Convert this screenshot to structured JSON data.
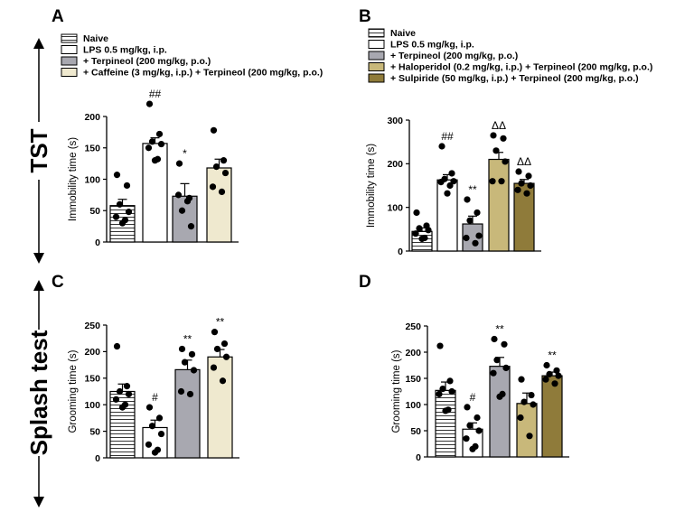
{
  "row_labels": [
    "TST",
    "Splash test"
  ],
  "chart_data": [
    {
      "panel": "A",
      "type": "bar",
      "ylabel": "Immobility time (s)",
      "ylim": [
        0,
        200
      ],
      "yticks": [
        0,
        50,
        100,
        150,
        200
      ],
      "legend": [
        {
          "label": "Naive",
          "pattern": "stripes",
          "color": "#ffffff"
        },
        {
          "label": "LPS 0.5 mg/kg, i.p.",
          "color": "#ffffff"
        },
        {
          "label": "+ Terpineol (200 mg/kg, p.o.)",
          "color": "#a8a8b0"
        },
        {
          "label": "+ Caffeine (3 mg/kg, i.p.) + Terpineol (200 mg/kg, p.o.)",
          "color": "#efe9cf"
        }
      ],
      "bars": [
        {
          "value": 58,
          "err": 10,
          "annot": "",
          "points": [
            107,
            90,
            60,
            48,
            40,
            35,
            30
          ]
        },
        {
          "value": 157,
          "err": 9,
          "annot": "##",
          "points": [
            220,
            172,
            160,
            156,
            150,
            132,
            130
          ]
        },
        {
          "value": 73,
          "err": 20,
          "annot": "*",
          "points": [
            125,
            70,
            50,
            25,
            75,
            65
          ]
        },
        {
          "value": 118,
          "err": 14,
          "annot": "",
          "points": [
            178,
            130,
            120,
            110,
            88,
            80
          ]
        }
      ]
    },
    {
      "panel": "B",
      "type": "bar",
      "ylabel": "Immobility time (s)",
      "ylim": [
        0,
        300
      ],
      "yticks": [
        0,
        100,
        200,
        300
      ],
      "legend": [
        {
          "label": "Naive",
          "pattern": "stripes",
          "color": "#ffffff"
        },
        {
          "label": "LPS 0.5 mg/kg, i.p.",
          "color": "#ffffff"
        },
        {
          "label": "+ Terpineol (200 mg/kg, p.o.)",
          "color": "#a8a8b0"
        },
        {
          "label": "+ Haloperidol (0.2 mg/kg, i.p.) + Terpineol (200 mg/kg, p.o.)",
          "color": "#c8b87a"
        },
        {
          "label": "+ Sulpiride (50 mg/kg, i.p.) + Terpineol (200 mg/kg, p.o.)",
          "color": "#8f7b3a"
        }
      ],
      "bars": [
        {
          "value": 45,
          "err": 8,
          "annot": "",
          "points": [
            88,
            58,
            52,
            48,
            40,
            30,
            28
          ]
        },
        {
          "value": 163,
          "err": 12,
          "annot": "##",
          "points": [
            240,
            178,
            165,
            160,
            158,
            150,
            132
          ]
        },
        {
          "value": 62,
          "err": 18,
          "annot": "**",
          "points": [
            118,
            88,
            70,
            35,
            30,
            18
          ]
        },
        {
          "value": 210,
          "err": 16,
          "annot": "ΔΔ",
          "points": [
            265,
            258,
            230,
            205,
            160,
            160
          ]
        },
        {
          "value": 155,
          "err": 9,
          "annot": "ΔΔ",
          "points": [
            182,
            172,
            155,
            150,
            140,
            132
          ]
        }
      ]
    },
    {
      "panel": "C",
      "type": "bar",
      "ylabel": "Grooming time (s)",
      "ylim": [
        0,
        250
      ],
      "yticks": [
        0,
        50,
        100,
        150,
        200,
        250
      ],
      "bars": [
        {
          "value": 125,
          "err": 14,
          "annot": "",
          "points": [
            210,
            135,
            125,
            120,
            110,
            100,
            95
          ]
        },
        {
          "value": 57,
          "err": 14,
          "annot": "#",
          "points": [
            95,
            75,
            60,
            45,
            25,
            15,
            10
          ]
        },
        {
          "value": 166,
          "err": 18,
          "annot": "**",
          "points": [
            205,
            195,
            180,
            165,
            125,
            120
          ]
        },
        {
          "value": 190,
          "err": 14,
          "annot": "**",
          "points": [
            237,
            215,
            205,
            190,
            170,
            145
          ]
        }
      ]
    },
    {
      "panel": "D",
      "type": "bar",
      "ylabel": "Grooming time (s)",
      "ylim": [
        0,
        250
      ],
      "yticks": [
        0,
        50,
        100,
        150,
        200,
        250
      ],
      "bars": [
        {
          "value": 127,
          "err": 16,
          "annot": "",
          "points": [
            212,
            145,
            130,
            125,
            120,
            90,
            88
          ]
        },
        {
          "value": 53,
          "err": 12,
          "annot": "#",
          "points": [
            95,
            75,
            60,
            50,
            35,
            20,
            15
          ]
        },
        {
          "value": 173,
          "err": 17,
          "annot": "**",
          "points": [
            225,
            215,
            185,
            170,
            160,
            120,
            115
          ]
        },
        {
          "value": 102,
          "err": 20,
          "annot": "",
          "points": [
            148,
            118,
            105,
            100,
            75,
            40
          ]
        },
        {
          "value": 155,
          "err": 7,
          "annot": "**",
          "points": [
            175,
            165,
            158,
            155,
            148,
            140
          ]
        }
      ]
    }
  ]
}
